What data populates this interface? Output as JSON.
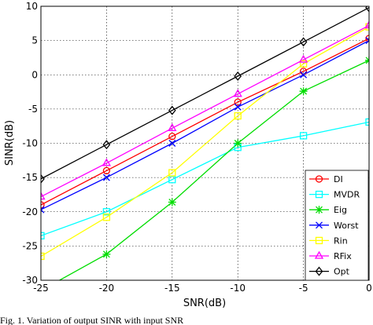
{
  "chart_data": {
    "type": "line",
    "title": "",
    "xlabel": "SNR(dB)",
    "ylabel": "SINR(dB)",
    "xlim": [
      -25,
      0
    ],
    "ylim": [
      -30,
      10
    ],
    "xticks": [
      -25,
      -20,
      -15,
      -10,
      -5,
      0
    ],
    "yticks": [
      -30,
      -25,
      -20,
      -15,
      -10,
      -5,
      0,
      5,
      10
    ],
    "xtick_labels": [
      "-25",
      "-20",
      "-15",
      "-10",
      "-5",
      "0"
    ],
    "ytick_labels": [
      "-30",
      "-25",
      "-20",
      "-15",
      "-10",
      "-5",
      "0",
      "5",
      "10"
    ],
    "grid": true,
    "legend_position": "bottom-right",
    "x": [
      -25,
      -20,
      -15,
      -10,
      -5,
      0
    ],
    "series": [
      {
        "name": "DI",
        "color": "#ff0000",
        "marker": "circle",
        "values": [
          -19,
          -14,
          -9,
          -4,
          0.5,
          5.3
        ]
      },
      {
        "name": "MVDR",
        "color": "#00ffff",
        "marker": "square",
        "values": [
          -23.5,
          -20,
          -15.3,
          -10.6,
          -8.9,
          -6.9
        ]
      },
      {
        "name": "Eig",
        "color": "#00dd00",
        "marker": "star",
        "values": [
          -31.5,
          -26.2,
          -18.6,
          -10,
          -2.4,
          2.1
        ]
      },
      {
        "name": "Worst",
        "color": "#0000ff",
        "marker": "x",
        "values": [
          -19.7,
          -15,
          -10,
          -4.7,
          0,
          5
        ]
      },
      {
        "name": "Rin",
        "color": "#ffff00",
        "marker": "square",
        "values": [
          -26.5,
          -20.8,
          -14.3,
          -6,
          1.6,
          7
        ]
      },
      {
        "name": "RFix",
        "color": "#ff00ff",
        "marker": "triangle",
        "values": [
          -17.8,
          -12.9,
          -7.8,
          -2.8,
          2.2,
          7.2
        ]
      },
      {
        "name": "Opt",
        "color": "#000000",
        "marker": "diamond",
        "values": [
          -15.2,
          -10.2,
          -5.2,
          -0.2,
          4.8,
          9.8
        ]
      }
    ]
  },
  "caption": "Fig. 1.   Variation of output SINR with input SNR"
}
